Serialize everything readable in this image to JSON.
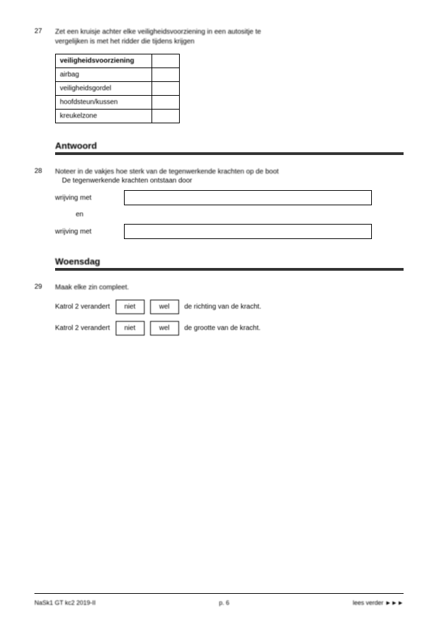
{
  "q27": {
    "num": "27",
    "text_line1": "Zet een kruisje achter elke veiligheidsvoorziening in een autositje te",
    "text_line2": "vergelijken is met het ridder die tijdens krijgen",
    "table": {
      "header": "veiligheidsvoorziening",
      "rows": [
        "airbag",
        "veiligheidsgordel",
        "hoofdsteun/kussen",
        "kreukelzone"
      ]
    }
  },
  "section1": {
    "title": "Antwoord"
  },
  "q28": {
    "num": "28",
    "text": "Noteer in de vakjes hoe sterk van de tegenwerkende krachten op de boot",
    "sub": "De tegenwerkende krachten ontstaan door",
    "label1": "wrijving met",
    "and": "en",
    "label2": "wrijving met"
  },
  "section2": {
    "title": "Woensdag"
  },
  "q29": {
    "num": "29",
    "text": "Maak elke zin compleet.",
    "row1_lead": "Katrol 2 verandert",
    "row2_lead": "Katrol 2 verandert",
    "opt_a": "niet",
    "opt_b": "wel",
    "row1_trail": "de richting van de kracht.",
    "row2_trail": "de grootte van de kracht."
  },
  "footer": {
    "left": "NaSk1 GT kc2 2019-II",
    "center": "p. 6",
    "right": "lees verder ►►►"
  }
}
